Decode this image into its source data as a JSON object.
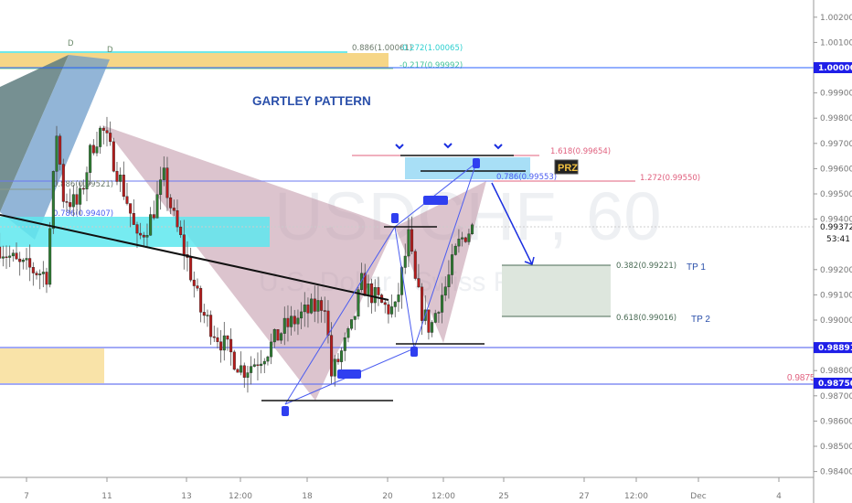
{
  "watermark": {
    "symbol": "USDCHF, 60",
    "description": "U.S. Dollar / Swiss Franc"
  },
  "title": "GARTLEY PATTERN",
  "colors": {
    "bull": "#2e7d32",
    "bear": "#b71c1c",
    "pattern_fill": "#b98a9e",
    "accent_blue": "#2962ff",
    "title_blue": "#2a4faa",
    "fib_red": "#e0607e",
    "prz_fill": "#9fdcf5",
    "cyan_zone": "#5ee8ee",
    "orange_zone": "#f5d27a",
    "tp_fill": "#dde6dd"
  },
  "annotations": {
    "d_labels": [
      "D",
      "D"
    ],
    "top_fib_1": "0.886(1.00061)",
    "top_fib_2": "-0.272(1.00065)",
    "top_fib_3": "-0.217(0.99992)",
    "left_fib_886": "0.886(0.99521)",
    "left_fib_786": "0.786(0.99407)",
    "fib_1618": "1.618(0.99654)",
    "fib_786": "0.786(0.99553)",
    "fib_1272": "1.272(0.99550)",
    "prz": "PRZ",
    "tp1_level": "0.382(0.99221)",
    "tp2_level": "0.618(0.99016)",
    "tp1": "TP 1",
    "tp2": "TP 2",
    "support_level": "0.98750"
  },
  "price_axis": {
    "ticks": [
      "1.00200",
      "1.00100",
      "1.00000",
      "0.99900",
      "0.99800",
      "0.99700",
      "0.99600",
      "0.99500",
      "0.99400",
      "0.99300",
      "0.99200",
      "0.99100",
      "0.99000",
      "0.98900",
      "0.98800",
      "0.98750",
      "0.98700",
      "0.98600",
      "0.98500",
      "0.98400"
    ],
    "highlighted": [
      "1.00000",
      "0.98891",
      "0.98750"
    ],
    "current_price": "0.99372",
    "countdown": "53:41"
  },
  "time_axis": {
    "ticks": [
      "7",
      "11",
      "13",
      "12:00",
      "18",
      "20",
      "12:00",
      "25",
      "27",
      "12:00",
      "Dec",
      "4"
    ]
  },
  "chart_data": {
    "type": "candlestick",
    "symbol": "USDCHF",
    "interval": "60",
    "ylim": [
      0.9838,
      1.0027
    ],
    "price_path": [
      [
        "Nov 6 08:00",
        0.9929
      ],
      [
        "Nov 6 19:00",
        0.99217
      ],
      [
        "Nov 7 12:00",
        0.99181
      ],
      [
        "Nov 7 14:00",
        0.99362
      ],
      [
        "Nov 7 18:00",
        0.99743
      ],
      [
        "Nov 7 22:00",
        0.99489
      ],
      [
        "Nov 8 07:00",
        0.99453
      ],
      [
        "Nov 8 15:00",
        0.99688
      ],
      [
        "Nov 8 21:00",
        0.99761
      ],
      [
        "Nov 11 04:00",
        0.99634
      ],
      [
        "Nov 11 13:00",
        0.99453
      ],
      [
        "Nov 11 18:00",
        0.99308
      ],
      [
        "Nov 12 02:00",
        0.99399
      ],
      [
        "Nov 12 10:00",
        0.99562
      ],
      [
        "Nov 12 16:00",
        0.99399
      ],
      [
        "Nov 13 00:00",
        0.99236
      ],
      [
        "Nov 13 08:00",
        0.99036
      ],
      [
        "Nov 13 19:00",
        0.98928
      ],
      [
        "Nov 14 09:00",
        0.98801
      ],
      [
        "Nov 14 17:00",
        0.98837
      ],
      [
        "Nov 15 01:00",
        0.98891
      ],
      [
        "Nov 15 09:00",
        0.98964
      ],
      [
        "Nov 15 20:00",
        0.99018
      ],
      [
        "Nov 18 10:00",
        0.99072
      ],
      [
        "Nov 18 14:00",
        0.98783
      ],
      [
        "Nov 18 19:00",
        0.98855
      ],
      [
        "Nov 19 02:00",
        0.98964
      ],
      [
        "Nov 19 08:00",
        0.99145
      ],
      [
        "Nov 19 13:00",
        0.99109
      ],
      [
        "Nov 19 21:00",
        0.99054
      ],
      [
        "Nov 20 04:00",
        0.99036
      ],
      [
        "Nov 20 08:00",
        0.99181
      ],
      [
        "Nov 20 12:00",
        0.99326
      ],
      [
        "Nov 20 16:00",
        0.99145
      ],
      [
        "Nov 20 20:00",
        0.99036
      ],
      [
        "Nov 21 01:00",
        0.98964
      ],
      [
        "Nov 21 06:00",
        0.99072
      ],
      [
        "Nov 21 11:00",
        0.99145
      ],
      [
        "Nov 21 17:00",
        0.9929
      ],
      [
        "Nov 21 22:00",
        0.99344
      ],
      [
        "Nov 22 03:00",
        0.9937
      ]
    ],
    "levels": [
      1.0,
      0.99553,
      0.9955,
      0.99654,
      0.99221,
      0.99016,
      0.98891,
      0.9875
    ],
    "grid": false
  }
}
